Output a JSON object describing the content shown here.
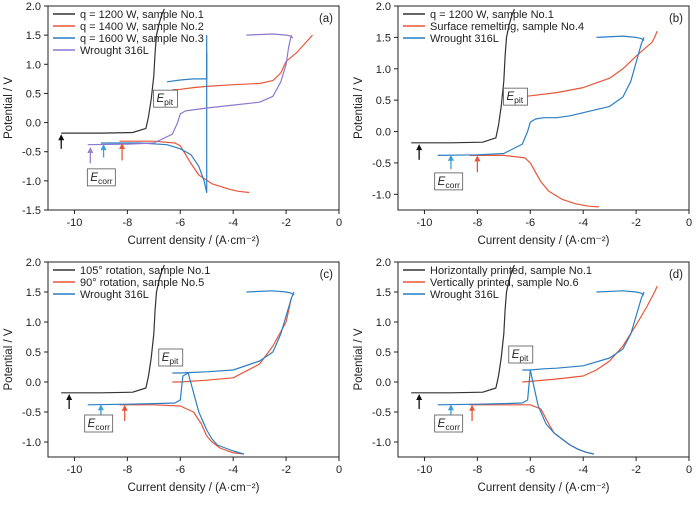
{
  "colors": {
    "black": "#333333",
    "red": "#e8563a",
    "blue": "#2b7fc4",
    "purple": "#8c78d0",
    "arrow_black": "#111111",
    "arrow_purple": "#9a80d8",
    "arrow_blue": "#3aa0d8",
    "arrow_red": "#e8563a"
  },
  "chart_data": [
    {
      "type": "line",
      "panel_label": "(a)",
      "xlabel": "Current density / (A·cm⁻²)",
      "ylabel": "Potential / V",
      "xlim": [
        -11,
        0
      ],
      "ylim": [
        -1.5,
        2.0
      ],
      "xticks": [
        -10,
        -8,
        -6,
        -4,
        -2,
        0
      ],
      "yticks": [
        -1.5,
        -1.0,
        -0.5,
        0.0,
        0.5,
        1.0,
        1.5,
        2.0
      ],
      "legend_position": "top-left",
      "series": [
        {
          "name": "q = 1200 W, sample No.1",
          "color": "black",
          "x": [
            -10.5,
            -9.0,
            -7.8,
            -7.3,
            -7.2,
            -7.1,
            -7.0,
            -6.95,
            -6.9,
            -6.8,
            -6.7,
            -6.65,
            -6.6
          ],
          "y": [
            -0.18,
            -0.18,
            -0.17,
            -0.1,
            0.1,
            0.4,
            0.8,
            1.2,
            1.5,
            1.7,
            1.85,
            1.9,
            1.95
          ]
        },
        {
          "name": "q = 1400 W, sample No.2",
          "color": "red",
          "x": [
            -8.3,
            -7.0,
            -6.2,
            -6.0,
            -5.8,
            -5.6,
            -5.3,
            -4.8,
            -4.3,
            -4.1,
            -3.8,
            -3.4
          ],
          "y": [
            -0.32,
            -0.32,
            -0.35,
            -0.4,
            -0.55,
            -0.7,
            -0.9,
            -1.05,
            -1.12,
            -1.15,
            -1.18,
            -1.2
          ]
        },
        {
          "name": "q = 1400 W, sample No.2",
          "color": "red",
          "x": [
            -6.3,
            -6.0,
            -5.5,
            -5.0,
            -4.0,
            -3.0,
            -2.5,
            -2.2,
            -2.0,
            -1.6,
            -1.3,
            -1.0
          ],
          "y": [
            0.56,
            0.57,
            0.6,
            0.62,
            0.65,
            0.67,
            0.72,
            0.85,
            1.05,
            1.2,
            1.35,
            1.5
          ]
        },
        {
          "name": "q = 1600 W, sample No.3",
          "color": "blue",
          "x": [
            -9.0,
            -7.5,
            -6.5,
            -6.0,
            -5.6,
            -5.3,
            -5.1,
            -5.0,
            -5.0,
            -5.0
          ],
          "y": [
            -0.35,
            -0.35,
            -0.38,
            -0.45,
            -0.55,
            -0.75,
            -1.0,
            -1.2,
            0.5,
            1.5
          ]
        },
        {
          "name": "q = 1600 W, sample No.3",
          "color": "blue",
          "x": [
            -6.5,
            -6.0,
            -5.5,
            -5.0,
            -5.0
          ],
          "y": [
            0.7,
            0.73,
            0.75,
            0.75,
            1.2
          ]
        },
        {
          "name": "Wrought 316L",
          "color": "purple",
          "x": [
            -9.5,
            -8.0,
            -7.0,
            -6.3,
            -6.1,
            -6.0,
            -5.8,
            -5.0,
            -4.0,
            -3.0,
            -2.5,
            -2.2,
            -2.0,
            -1.9,
            -1.8
          ],
          "y": [
            -0.38,
            -0.37,
            -0.35,
            -0.2,
            0.0,
            0.15,
            0.2,
            0.25,
            0.3,
            0.35,
            0.45,
            0.7,
            1.0,
            1.3,
            1.5
          ]
        },
        {
          "name": "Wrought 316L",
          "color": "purple",
          "x": [
            -3.5,
            -2.5,
            -2.0,
            -1.8,
            -1.75
          ],
          "y": [
            1.5,
            1.52,
            1.5,
            1.48,
            1.45
          ]
        }
      ],
      "arrows": [
        {
          "color": "arrow_black",
          "x": -10.5,
          "y_from": -0.45,
          "y_to": -0.2
        },
        {
          "color": "arrow_purple",
          "x": -9.4,
          "y_from": -0.7,
          "y_to": -0.42
        },
        {
          "color": "arrow_blue",
          "x": -8.9,
          "y_from": -0.6,
          "y_to": -0.37
        },
        {
          "color": "arrow_red",
          "x": -8.2,
          "y_from": -0.65,
          "y_to": -0.35
        }
      ],
      "annotations": [
        {
          "main": "E",
          "sub": "pit",
          "x": -6.9,
          "y": 0.35
        },
        {
          "main": "E",
          "sub": "corr",
          "x": -9.4,
          "y": -1.0
        }
      ]
    },
    {
      "type": "line",
      "panel_label": "(b)",
      "xlabel": "Current density / (A·cm⁻²)",
      "ylabel": "Potential / V",
      "xlim": [
        -11,
        0
      ],
      "ylim": [
        -1.25,
        2.0
      ],
      "xticks": [
        -10,
        -8,
        -6,
        -4,
        -2,
        0
      ],
      "yticks": [
        -1.0,
        -0.5,
        0.0,
        0.5,
        1.0,
        1.5,
        2.0
      ],
      "legend_position": "top-left",
      "series": [
        {
          "name": "q = 1200 W, sample No.1",
          "color": "black",
          "x": [
            -10.5,
            -9.0,
            -7.8,
            -7.3,
            -7.2,
            -7.1,
            -7.0,
            -6.95,
            -6.9,
            -6.8,
            -6.7,
            -6.65,
            -6.6
          ],
          "y": [
            -0.18,
            -0.18,
            -0.17,
            -0.1,
            0.1,
            0.4,
            0.8,
            1.2,
            1.5,
            1.7,
            1.85,
            1.9,
            1.95
          ]
        },
        {
          "name": "Surface remelting, sample No.4",
          "color": "red",
          "x": [
            -8.3,
            -7.0,
            -6.2,
            -6.0,
            -5.6,
            -5.3,
            -4.8,
            -4.3,
            -3.8,
            -3.4
          ],
          "y": [
            -0.38,
            -0.38,
            -0.42,
            -0.5,
            -0.8,
            -0.95,
            -1.08,
            -1.15,
            -1.19,
            -1.2
          ]
        },
        {
          "name": "Surface remelting, sample No.4",
          "color": "red",
          "x": [
            -6.5,
            -6.0,
            -5.0,
            -4.0,
            -3.0,
            -2.5,
            -2.0,
            -1.6,
            -1.4,
            -1.3,
            -1.25,
            -1.2
          ],
          "y": [
            0.55,
            0.57,
            0.62,
            0.7,
            0.85,
            1.0,
            1.2,
            1.35,
            1.42,
            1.5,
            1.55,
            1.6
          ]
        },
        {
          "name": "Wrought 316L",
          "color": "blue",
          "x": [
            -9.5,
            -8.0,
            -7.0,
            -6.3,
            -6.1,
            -6.0,
            -5.8,
            -5.5,
            -5.0,
            -4.5,
            -4.0,
            -3.0,
            -2.5,
            -2.2,
            -2.0,
            -1.8,
            -1.7
          ],
          "y": [
            -0.38,
            -0.37,
            -0.35,
            -0.2,
            0.0,
            0.15,
            0.2,
            0.22,
            0.22,
            0.25,
            0.3,
            0.4,
            0.55,
            0.8,
            1.1,
            1.4,
            1.5
          ]
        },
        {
          "name": "Wrought 316L",
          "color": "blue",
          "x": [
            -3.5,
            -2.5,
            -2.0,
            -1.8,
            -1.7
          ],
          "y": [
            1.5,
            1.52,
            1.5,
            1.48,
            1.45
          ]
        }
      ],
      "arrows": [
        {
          "color": "arrow_black",
          "x": -10.2,
          "y_from": -0.45,
          "y_to": -0.2
        },
        {
          "color": "arrow_blue",
          "x": -9.0,
          "y_from": -0.6,
          "y_to": -0.37
        },
        {
          "color": "arrow_red",
          "x": -8.0,
          "y_from": -0.65,
          "y_to": -0.38
        }
      ],
      "annotations": [
        {
          "main": "E",
          "sub": "pit",
          "x": -6.9,
          "y": 0.5
        },
        {
          "main": "E",
          "sub": "corr",
          "x": -9.5,
          "y": -0.85
        }
      ]
    },
    {
      "type": "line",
      "panel_label": "(c)",
      "xlabel": "Current density / (A·cm⁻²)",
      "ylabel": "Potential / V",
      "xlim": [
        -11,
        0
      ],
      "ylim": [
        -1.25,
        2.0
      ],
      "xticks": [
        -10,
        -8,
        -6,
        -4,
        -2,
        0
      ],
      "yticks": [
        -1.0,
        -0.5,
        0.0,
        0.5,
        1.0,
        1.5,
        2.0
      ],
      "legend_position": "top-left",
      "series": [
        {
          "name": "105° rotation, sample No.1",
          "color": "black",
          "x": [
            -10.5,
            -9.0,
            -7.8,
            -7.3,
            -7.2,
            -7.1,
            -7.0,
            -6.95,
            -6.9,
            -6.8,
            -6.7,
            -6.65,
            -6.6
          ],
          "y": [
            -0.18,
            -0.18,
            -0.17,
            -0.1,
            0.1,
            0.4,
            0.8,
            1.2,
            1.5,
            1.7,
            1.85,
            1.9,
            1.95
          ]
        },
        {
          "name": "90° rotation, sample No.5",
          "color": "red",
          "x": [
            -8.3,
            -7.0,
            -6.0,
            -5.5,
            -5.2,
            -5.0,
            -4.8,
            -4.5,
            -4.2,
            -4.0,
            -3.6
          ],
          "y": [
            -0.38,
            -0.38,
            -0.4,
            -0.5,
            -0.7,
            -0.9,
            -1.0,
            -1.1,
            -1.15,
            -1.18,
            -1.2
          ]
        },
        {
          "name": "90° rotation, sample No.5",
          "color": "red",
          "x": [
            -6.3,
            -6.0,
            -5.0,
            -4.0,
            -3.0,
            -2.5,
            -2.0,
            -1.8
          ],
          "y": [
            0.0,
            0.0,
            0.03,
            0.07,
            0.3,
            0.6,
            1.0,
            1.4
          ]
        },
        {
          "name": "Wrought 316L",
          "color": "blue",
          "x": [
            -9.5,
            -8.0,
            -7.0,
            -6.2,
            -6.0,
            -5.9,
            -5.7,
            -5.3,
            -5.0,
            -4.8,
            -4.6,
            -4.3,
            -4.0,
            -3.6
          ],
          "y": [
            -0.38,
            -0.37,
            -0.36,
            -0.35,
            -0.3,
            0.1,
            0.15,
            -0.5,
            -0.8,
            -0.95,
            -1.05,
            -1.1,
            -1.15,
            -1.2
          ]
        },
        {
          "name": "Wrought 316L",
          "color": "blue",
          "x": [
            -6.3,
            -6.0,
            -5.5,
            -5.0,
            -4.0,
            -3.0,
            -2.5,
            -2.2,
            -2.0,
            -1.8,
            -1.7
          ],
          "y": [
            0.15,
            0.15,
            0.16,
            0.17,
            0.2,
            0.35,
            0.5,
            0.8,
            1.1,
            1.4,
            1.5
          ]
        },
        {
          "name": "Wrought 316L",
          "color": "blue",
          "x": [
            -3.5,
            -2.5,
            -2.0,
            -1.8,
            -1.7
          ],
          "y": [
            1.5,
            1.52,
            1.5,
            1.48,
            1.45
          ]
        }
      ],
      "arrows": [
        {
          "color": "arrow_black",
          "x": -10.2,
          "y_from": -0.45,
          "y_to": -0.2
        },
        {
          "color": "arrow_blue",
          "x": -9.0,
          "y_from": -0.6,
          "y_to": -0.37
        },
        {
          "color": "arrow_red",
          "x": -8.1,
          "y_from": -0.65,
          "y_to": -0.38
        }
      ],
      "annotations": [
        {
          "main": "E",
          "sub": "pit",
          "x": -6.7,
          "y": 0.35
        },
        {
          "main": "E",
          "sub": "corr",
          "x": -9.5,
          "y": -0.75
        }
      ]
    },
    {
      "type": "line",
      "panel_label": "(d)",
      "xlabel": "Current density / (A·cm⁻²)",
      "ylabel": "Potential / V",
      "xlim": [
        -11,
        0
      ],
      "ylim": [
        -1.25,
        2.0
      ],
      "xticks": [
        -10,
        -8,
        -6,
        -4,
        -2,
        0
      ],
      "yticks": [
        -1.0,
        -0.5,
        0.0,
        0.5,
        1.0,
        1.5,
        2.0
      ],
      "legend_position": "top-left",
      "series": [
        {
          "name": "Horizontally printed, sample No.1",
          "color": "black",
          "x": [
            -10.5,
            -9.0,
            -7.8,
            -7.3,
            -7.2,
            -7.1,
            -7.0,
            -6.95,
            -6.9,
            -6.8,
            -6.7,
            -6.65,
            -6.6
          ],
          "y": [
            -0.18,
            -0.18,
            -0.17,
            -0.1,
            0.1,
            0.4,
            0.8,
            1.2,
            1.5,
            1.7,
            1.85,
            1.9,
            1.95
          ]
        },
        {
          "name": "Vertically printed, sample No.6",
          "color": "red",
          "x": [
            -8.3,
            -7.0,
            -6.0,
            -5.6,
            -5.3,
            -5.1,
            -4.8,
            -4.5,
            -4.2,
            -3.9,
            -3.6
          ],
          "y": [
            -0.38,
            -0.38,
            -0.38,
            -0.45,
            -0.7,
            -0.85,
            -0.95,
            -1.05,
            -1.12,
            -1.17,
            -1.2
          ]
        },
        {
          "name": "Vertically printed, sample No.6",
          "color": "red",
          "x": [
            -6.3,
            -6.0,
            -5.0,
            -4.0,
            -3.5,
            -3.0,
            -2.5,
            -2.0,
            -1.6,
            -1.3,
            -1.2
          ],
          "y": [
            0.0,
            0.01,
            0.05,
            0.1,
            0.2,
            0.35,
            0.6,
            0.95,
            1.25,
            1.5,
            1.6
          ]
        },
        {
          "name": "Wrought 316L",
          "color": "blue",
          "x": [
            -9.5,
            -8.0,
            -7.0,
            -6.3,
            -6.1,
            -6.0,
            -5.7,
            -5.4,
            -5.1,
            -4.8,
            -4.5,
            -4.2,
            -3.9,
            -3.6
          ],
          "y": [
            -0.38,
            -0.37,
            -0.36,
            -0.35,
            -0.3,
            0.2,
            -0.4,
            -0.7,
            -0.85,
            -0.95,
            -1.05,
            -1.12,
            -1.17,
            -1.2
          ]
        },
        {
          "name": "Wrought 316L",
          "color": "blue",
          "x": [
            -6.3,
            -6.0,
            -5.5,
            -5.0,
            -4.0,
            -3.0,
            -2.5,
            -2.2,
            -2.0,
            -1.8,
            -1.7
          ],
          "y": [
            0.2,
            0.2,
            0.22,
            0.23,
            0.27,
            0.4,
            0.55,
            0.8,
            1.1,
            1.4,
            1.5
          ]
        },
        {
          "name": "Wrought 316L",
          "color": "blue",
          "x": [
            -3.5,
            -2.5,
            -2.0,
            -1.8,
            -1.7
          ],
          "y": [
            1.5,
            1.52,
            1.5,
            1.48,
            1.45
          ]
        }
      ],
      "arrows": [
        {
          "color": "arrow_black",
          "x": -10.2,
          "y_from": -0.45,
          "y_to": -0.2
        },
        {
          "color": "arrow_blue",
          "x": -9.0,
          "y_from": -0.6,
          "y_to": -0.37
        },
        {
          "color": "arrow_red",
          "x": -8.2,
          "y_from": -0.65,
          "y_to": -0.38
        }
      ],
      "annotations": [
        {
          "main": "E",
          "sub": "pit",
          "x": -6.7,
          "y": 0.4
        },
        {
          "main": "E",
          "sub": "corr",
          "x": -9.5,
          "y": -0.75
        }
      ]
    }
  ]
}
